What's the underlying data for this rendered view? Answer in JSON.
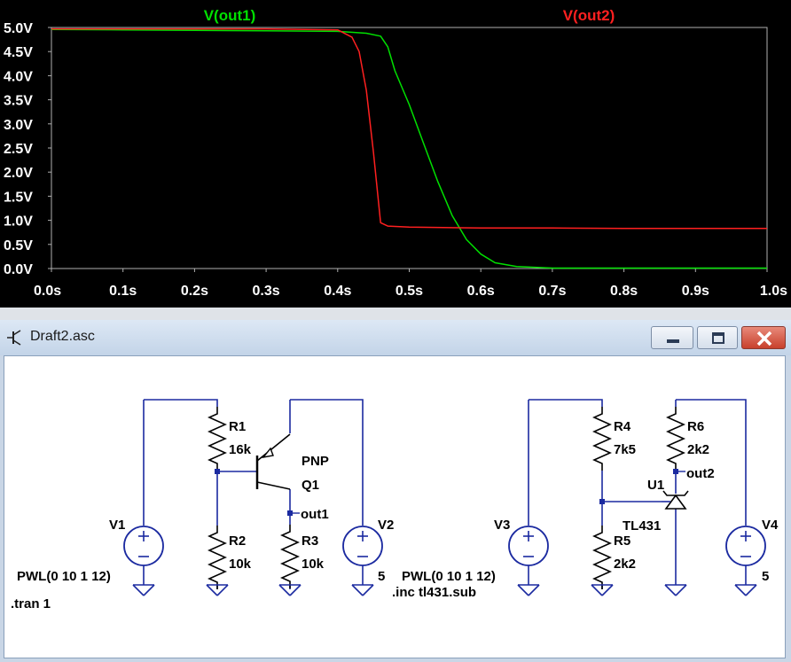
{
  "plot": {
    "trace1_label": "V(out1)",
    "trace2_label": "V(out2)",
    "trace1_color": "#00e000",
    "trace2_color": "#ff2020",
    "background": "#000000",
    "y_ticks": [
      "5.0V",
      "4.5V",
      "4.0V",
      "3.5V",
      "3.0V",
      "2.5V",
      "2.0V",
      "1.5V",
      "1.0V",
      "0.5V",
      "0.0V"
    ],
    "x_ticks": [
      "0.0s",
      "0.1s",
      "0.2s",
      "0.3s",
      "0.4s",
      "0.5s",
      "0.6s",
      "0.7s",
      "0.8s",
      "0.9s",
      "1.0s"
    ]
  },
  "chart_data": {
    "type": "line",
    "xlabel": "",
    "ylabel": "",
    "xlim": [
      0,
      1.0
    ],
    "ylim": [
      0,
      5.0
    ],
    "series": [
      {
        "name": "V(out1)",
        "color": "#00e000",
        "x": [
          0,
          0.1,
          0.2,
          0.3,
          0.4,
          0.44,
          0.46,
          0.47,
          0.48,
          0.5,
          0.52,
          0.54,
          0.56,
          0.58,
          0.6,
          0.62,
          0.65,
          0.7,
          0.8,
          1.0
        ],
        "y": [
          4.96,
          4.95,
          4.94,
          4.93,
          4.92,
          4.88,
          4.82,
          4.6,
          4.1,
          3.4,
          2.6,
          1.8,
          1.1,
          0.6,
          0.3,
          0.12,
          0.04,
          0.01,
          0.01,
          0.01
        ]
      },
      {
        "name": "V(out2)",
        "color": "#ff2020",
        "x": [
          0,
          0.1,
          0.2,
          0.3,
          0.4,
          0.42,
          0.43,
          0.44,
          0.45,
          0.46,
          0.47,
          0.5,
          0.6,
          0.7,
          0.8,
          1.0
        ],
        "y": [
          4.97,
          4.97,
          4.97,
          4.97,
          4.95,
          4.8,
          4.5,
          3.7,
          2.4,
          0.95,
          0.88,
          0.86,
          0.84,
          0.84,
          0.83,
          0.83
        ]
      }
    ]
  },
  "window": {
    "title": "Draft2.asc",
    "minimize_label": "minimize",
    "maximize_label": "maximize",
    "close_label": "close"
  },
  "schematic": {
    "r1_name": "R1",
    "r1_value": "16k",
    "r2_name": "R2",
    "r2_value": "10k",
    "r3_name": "R3",
    "r3_value": "10k",
    "r4_name": "R4",
    "r4_value": "7k5",
    "r5_name": "R5",
    "r5_value": "2k2",
    "r6_name": "R6",
    "r6_value": "2k2",
    "q1_name": "Q1",
    "q1_model": "PNP",
    "u1_name": "U1",
    "u1_model": "TL431",
    "v1_name": "V1",
    "v1_value": "PWL(0 10 1 12)",
    "v2_name": "V2",
    "v2_value": "5",
    "v3_name": "V3",
    "v3_value": "PWL(0 10 1 12)",
    "v4_name": "V4",
    "v4_value": "5",
    "net_out1": "out1",
    "net_out2": "out2",
    "directive_tran": ".tran 1",
    "directive_inc": ".inc tl431.sub"
  }
}
